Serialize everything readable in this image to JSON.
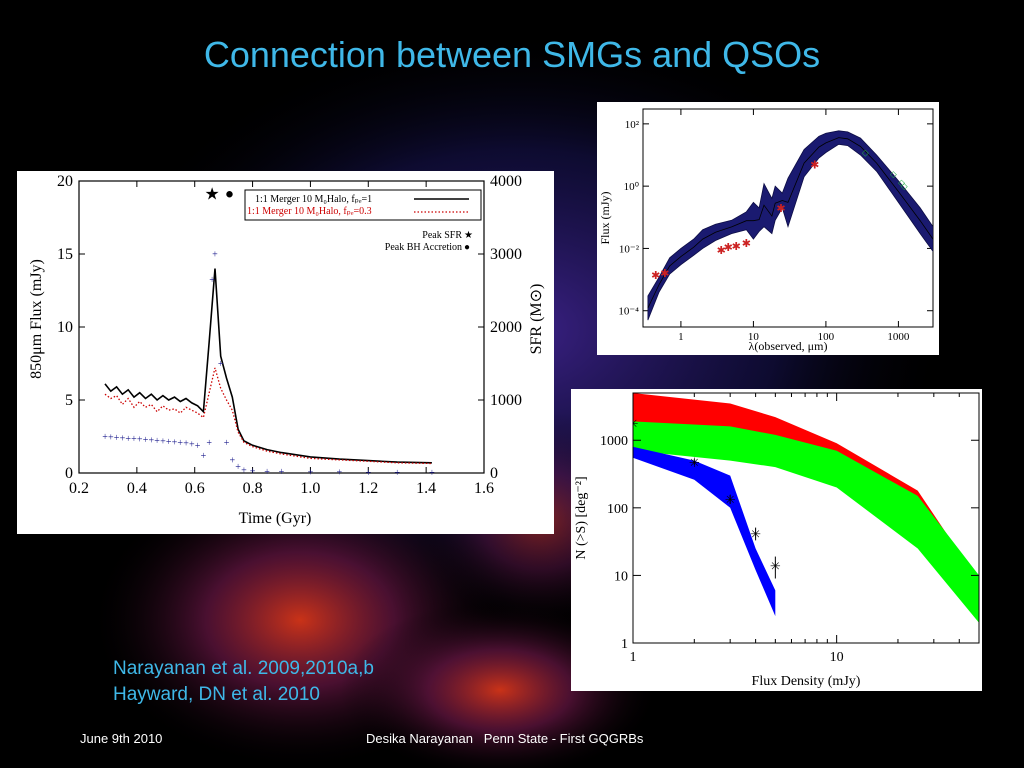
{
  "slide": {
    "title": "Connection between SMGs and QSOs",
    "credits": [
      "Narayanan et al. 2009,2010a,b",
      "Hayward, DN et al. 2010"
    ],
    "footer_left": "June 9th 2010",
    "footer_center": "Desika Narayanan   Penn State - First GQGRBs"
  },
  "chart_data": [
    {
      "type": "line",
      "xlabel": "Time (Gyr)",
      "ylabel": "850μm Flux (mJy)",
      "y2label": "SFR (M⊙)",
      "xlim": [
        0.2,
        1.6
      ],
      "ylim": [
        0,
        20
      ],
      "y2lim": [
        0,
        4000
      ],
      "x_ticks": [
        "0.2",
        "0.4",
        "0.6",
        "0.8",
        "1.0",
        "1.2",
        "1.4",
        "1.6"
      ],
      "y_ticks": [
        "0",
        "5",
        "10",
        "15",
        "20"
      ],
      "y2_ticks": [
        "0",
        "1000",
        "2000",
        "3000",
        "4000"
      ],
      "legend": [
        {
          "label": "1:1 Merger 10 M₀Halo, fₚₑ=1",
          "color": "#000000",
          "style": "solid"
        },
        {
          "label": "1:1 Merger 10 M₀Halo, fₚₑ=0.3",
          "color": "#cc0000",
          "style": "dotted"
        }
      ],
      "markers_legend": [
        {
          "label": "Peak SFR",
          "symbol": "★"
        },
        {
          "label": "Peak BH Accretion",
          "symbol": "●"
        }
      ],
      "peak_markers": {
        "star_x": 0.66,
        "circle_x": 0.72,
        "y": 19.2
      },
      "series": [
        {
          "name": "1:1 Merger 10 M₀Halo, fₚₑ=1",
          "color": "#000000",
          "style": "solid",
          "x": [
            0.29,
            0.31,
            0.33,
            0.35,
            0.37,
            0.39,
            0.41,
            0.43,
            0.45,
            0.47,
            0.49,
            0.51,
            0.53,
            0.55,
            0.57,
            0.59,
            0.61,
            0.63,
            0.65,
            0.67,
            0.69,
            0.71,
            0.73,
            0.75,
            0.77,
            0.8,
            0.85,
            0.9,
            1.0,
            1.1,
            1.2,
            1.3,
            1.42
          ],
          "y": [
            6.1,
            5.6,
            5.9,
            5.4,
            5.7,
            5.2,
            5.5,
            5.1,
            5.4,
            5.0,
            5.3,
            5.0,
            5.2,
            4.9,
            5.1,
            4.8,
            4.6,
            4.2,
            9.0,
            14.0,
            8.0,
            6.5,
            5.2,
            3.0,
            2.2,
            1.9,
            1.6,
            1.4,
            1.1,
            0.95,
            0.85,
            0.75,
            0.7
          ]
        },
        {
          "name": "1:1 Merger 10 M₀Halo, fₚₑ=0.3",
          "color": "#cc0000",
          "style": "dotted",
          "x": [
            0.29,
            0.31,
            0.33,
            0.35,
            0.37,
            0.39,
            0.41,
            0.43,
            0.45,
            0.47,
            0.49,
            0.51,
            0.53,
            0.55,
            0.57,
            0.59,
            0.61,
            0.63,
            0.65,
            0.67,
            0.69,
            0.71,
            0.73,
            0.75,
            0.77,
            0.8,
            0.85,
            0.9,
            1.0,
            1.1,
            1.2,
            1.3,
            1.42
          ],
          "y": [
            5.4,
            5.1,
            5.3,
            4.7,
            5.1,
            4.5,
            4.9,
            4.5,
            4.7,
            4.2,
            4.6,
            4.3,
            4.4,
            4.1,
            4.5,
            4.3,
            4.1,
            3.8,
            5.5,
            7.2,
            5.8,
            5.0,
            4.3,
            2.8,
            2.1,
            1.8,
            1.5,
            1.3,
            1.0,
            0.9,
            0.8,
            0.7,
            0.65
          ]
        },
        {
          "name": "SFR",
          "color": "#1a1a8c",
          "style": "plus",
          "axis": "right",
          "x": [
            0.29,
            0.31,
            0.33,
            0.35,
            0.37,
            0.39,
            0.41,
            0.43,
            0.45,
            0.47,
            0.49,
            0.51,
            0.53,
            0.55,
            0.57,
            0.59,
            0.61,
            0.63,
            0.65,
            0.66,
            0.67,
            0.69,
            0.71,
            0.73,
            0.75,
            0.77,
            0.8,
            0.85,
            0.9,
            1.0,
            1.1,
            1.2,
            1.3,
            1.42
          ],
          "y": [
            500,
            490,
            485,
            480,
            475,
            470,
            465,
            460,
            450,
            445,
            440,
            430,
            425,
            415,
            410,
            400,
            380,
            240,
            420,
            2650,
            3000,
            1500,
            420,
            180,
            90,
            40,
            25,
            20,
            18,
            15,
            12,
            10,
            8,
            5
          ]
        }
      ]
    },
    {
      "type": "line",
      "xlabel": "λ(observed, μm)",
      "ylabel": "Flux (mJy)",
      "x_scale": "log",
      "y_scale": "log",
      "xlim": [
        0.3,
        3000
      ],
      "ylim": [
        3e-05,
        300
      ],
      "x_ticks": [
        "1",
        "10",
        "100",
        "1000"
      ],
      "y_ticks": [
        "10⁻⁴",
        "10⁻²",
        "10⁰",
        "10²"
      ],
      "series": [
        {
          "name": "SED band",
          "color": "#1a1a70",
          "style": "band",
          "x": [
            0.35,
            0.5,
            0.7,
            1,
            1.5,
            2,
            3,
            5,
            8,
            10,
            12,
            14,
            18,
            20,
            25,
            30,
            50,
            80,
            100,
            150,
            200,
            300,
            500,
            1000,
            2000,
            3000
          ],
          "y_low": [
            5e-05,
            0.0004,
            0.0015,
            0.003,
            0.006,
            0.01,
            0.018,
            0.03,
            0.04,
            0.02,
            0.035,
            0.05,
            0.03,
            0.08,
            0.2,
            0.05,
            2,
            8,
            12,
            22,
            20,
            10,
            3,
            0.3,
            0.03,
            0.008
          ],
          "y_high": [
            0.0003,
            0.0012,
            0.005,
            0.01,
            0.02,
            0.04,
            0.06,
            0.08,
            0.15,
            0.3,
            0.2,
            1.2,
            0.4,
            1.0,
            0.6,
            1.8,
            15,
            40,
            50,
            60,
            55,
            35,
            10,
            1.5,
            0.2,
            0.05
          ]
        },
        {
          "name": "Observed",
          "color": "#cc2222",
          "style": "markers",
          "x": [
            0.45,
            0.6,
            3.6,
            4.5,
            5.8,
            8,
            24,
            70
          ],
          "y": [
            0.0014,
            0.0016,
            0.009,
            0.011,
            0.012,
            0.015,
            0.2,
            5
          ]
        },
        {
          "name": "Submm",
          "color": "#22aa44",
          "style": "markers",
          "x": [
            350,
            850,
            1100,
            1200
          ],
          "y": [
            12,
            2.5,
            1.3,
            1.0
          ]
        }
      ]
    },
    {
      "type": "area",
      "xlabel": "Flux Density (mJy)",
      "ylabel": "N (>S) [deg⁻²]",
      "x_scale": "log",
      "y_scale": "log",
      "xlim": [
        1,
        50
      ],
      "ylim": [
        1,
        5000
      ],
      "x_ticks": [
        "1",
        "10"
      ],
      "y_ticks": [
        "1",
        "10",
        "100",
        "1000"
      ],
      "series": [
        {
          "name": "red band",
          "color": "#ff0000",
          "x": [
            1,
            3,
            5,
            10,
            25,
            50
          ],
          "y_low": [
            1600,
            1200,
            900,
            500,
            130,
            2
          ],
          "y_high": [
            5000,
            3500,
            2200,
            900,
            180,
            8
          ]
        },
        {
          "name": "green band",
          "color": "#00ff00",
          "x": [
            1,
            3,
            5,
            10,
            25,
            50
          ],
          "y_low": [
            700,
            500,
            400,
            200,
            25,
            2
          ],
          "y_high": [
            1900,
            1600,
            1200,
            700,
            150,
            10
          ]
        },
        {
          "name": "blue band",
          "color": "#0000ff",
          "x": [
            1,
            2,
            3,
            4,
            5
          ],
          "y_low": [
            550,
            260,
            100,
            12,
            2.5
          ],
          "y_high": [
            800,
            500,
            300,
            25,
            6
          ]
        },
        {
          "name": "data",
          "color": "#000000",
          "style": "errorbar",
          "x": [
            1,
            2,
            3,
            4,
            5
          ],
          "y": [
            1800,
            480,
            135,
            42,
            14
          ],
          "y_err_low": [
            1500,
            430,
            115,
            33,
            9
          ],
          "y_err_high": [
            2100,
            530,
            155,
            51,
            19
          ]
        }
      ]
    }
  ]
}
